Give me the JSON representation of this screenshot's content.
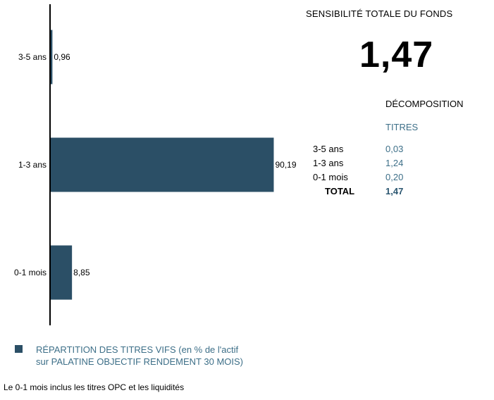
{
  "chart_data": {
    "type": "bar",
    "orientation": "horizontal",
    "categories": [
      "3-5 ans",
      "1-3 ans",
      "0-1 mois"
    ],
    "values": [
      0.96,
      90.19,
      8.85
    ],
    "value_labels": [
      "0,96",
      "90,19",
      "8,85"
    ],
    "xlim": [
      0,
      100
    ],
    "grid": false,
    "bar_color": "#2b4f66"
  },
  "panel": {
    "title": "SENSIBILITÉ TOTALE DU FONDS",
    "total_big": "1,47",
    "decomposition_title": "DÉCOMPOSITION",
    "column_header": "TITRES",
    "rows": [
      {
        "label": "3-5 ans",
        "value": "0,03"
      },
      {
        "label": "1-3 ans",
        "value": "1,24"
      },
      {
        "label": "0-1 mois",
        "value": "0,20"
      }
    ],
    "total_label": "TOTAL",
    "total_value": "1,47"
  },
  "legend": {
    "text": "RÉPARTITION DES TITRES VIFS  (en % de l'actif\nsur PALATINE OBJECTIF RENDEMENT 30 MOIS)",
    "color": "#2b4f66"
  },
  "footnote": "Le 0-1 mois inclus les titres OPC et les liquidités"
}
